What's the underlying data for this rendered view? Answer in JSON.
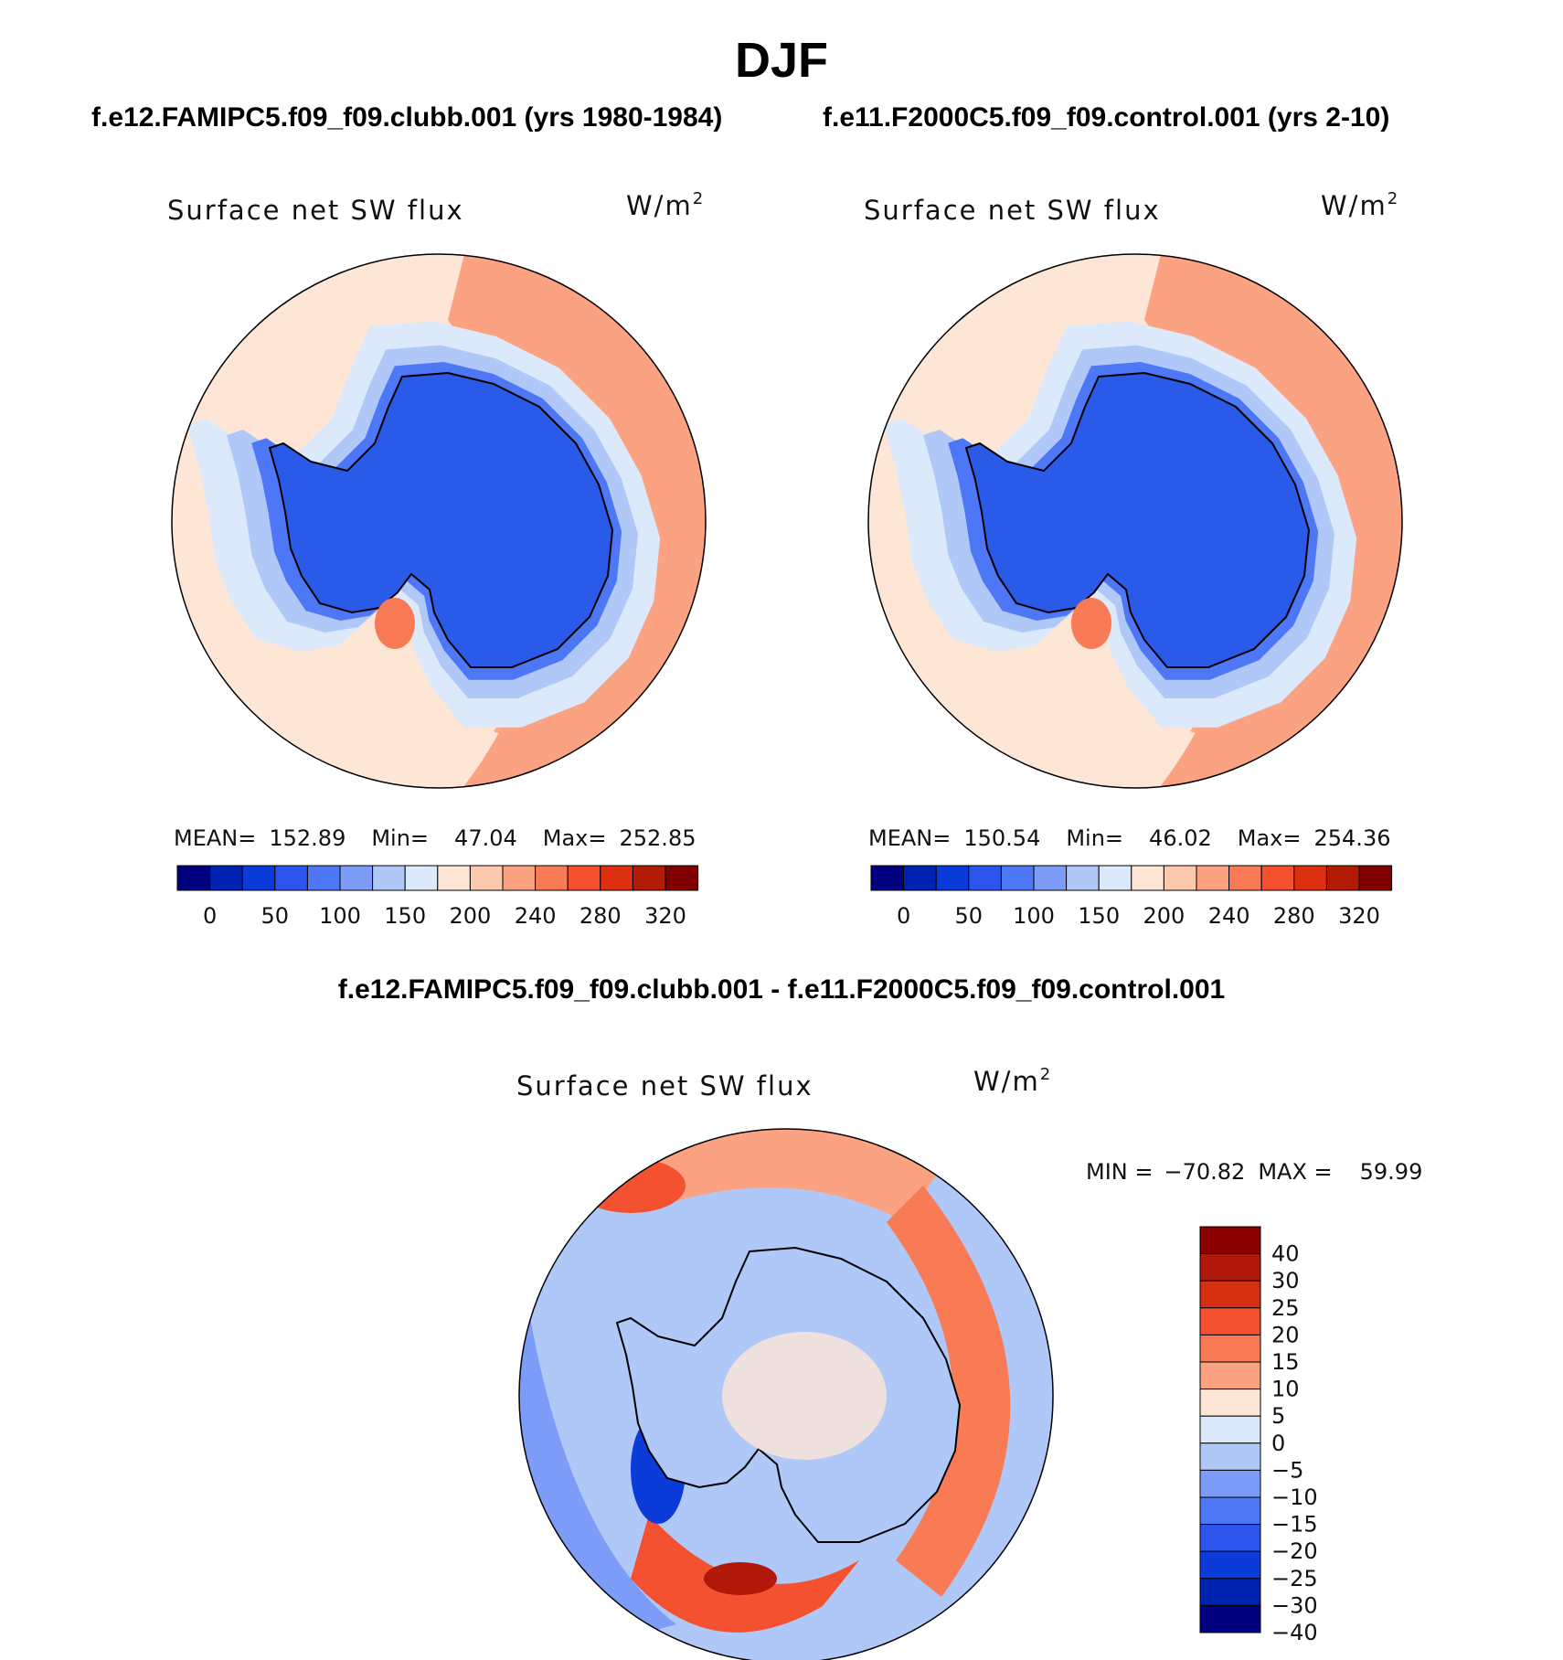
{
  "figure": {
    "title": "DJF",
    "subtitle_left": "f.e12.FAMIPC5.f09_f09.clubb.001 (yrs 1980-1984)",
    "subtitle_right": "f.e11.F2000C5.f09_f09.control.001 (yrs 2-10)",
    "diff_title": "f.e12.FAMIPC5.f09_f09.clubb.001 - f.e11.F2000C5.f09_f09.control.001"
  },
  "chart_data": [
    {
      "type": "heatmap",
      "projection": "south-polar-stereographic",
      "title": "Surface net SW flux",
      "units": "W/m",
      "units_sup": "2",
      "stats": {
        "mean_label": "MEAN=",
        "mean": "152.89",
        "min_label": "Min=",
        "min": "47.04",
        "max_label": "Max=",
        "max": "252.85"
      },
      "colorbar": {
        "orientation": "horizontal",
        "tick_labels": [
          "0",
          "50",
          "100",
          "150",
          "200",
          "240",
          "280",
          "320"
        ],
        "colors": [
          "#00007f",
          "#0022b0",
          "#0b3bd9",
          "#2c55ee",
          "#4e77f5",
          "#7d9cf8",
          "#b0c8f8",
          "#dce9fb",
          "#fde6d6",
          "#fcc8ae",
          "#faa281",
          "#f97b55",
          "#f45130",
          "#dc3010",
          "#b21c06",
          "#800000"
        ]
      }
    },
    {
      "type": "heatmap",
      "projection": "south-polar-stereographic",
      "title": "Surface net SW flux",
      "units": "W/m",
      "units_sup": "2",
      "stats": {
        "mean_label": "MEAN=",
        "mean": "150.54",
        "min_label": "Min=",
        "min": "46.02",
        "max_label": "Max=",
        "max": "254.36"
      },
      "colorbar": {
        "orientation": "horizontal",
        "tick_labels": [
          "0",
          "50",
          "100",
          "150",
          "200",
          "240",
          "280",
          "320"
        ],
        "colors": [
          "#00007f",
          "#0022b0",
          "#0b3bd9",
          "#2c55ee",
          "#4e77f5",
          "#7d9cf8",
          "#b0c8f8",
          "#dce9fb",
          "#fde6d6",
          "#fcc8ae",
          "#faa281",
          "#f97b55",
          "#f45130",
          "#dc3010",
          "#b21c06",
          "#800000"
        ]
      }
    },
    {
      "type": "heatmap",
      "projection": "south-polar-stereographic",
      "title": "Surface net SW flux",
      "units": "W/m",
      "units_sup": "2",
      "stats": {
        "min_label": "MIN =",
        "min": "−70.82",
        "max_label": "MAX =",
        "max": "59.99"
      },
      "colorbar": {
        "orientation": "vertical",
        "tick_labels": [
          "40",
          "30",
          "25",
          "20",
          "15",
          "10",
          "5",
          "0",
          "−5",
          "−10",
          "−15",
          "−20",
          "−25",
          "−30",
          "−40"
        ],
        "colors": [
          "#8b0000",
          "#b0180a",
          "#d63010",
          "#f45130",
          "#f97b55",
          "#faa281",
          "#fde6d6",
          "#dce9fb",
          "#b0c8f8",
          "#7d9cf8",
          "#4e77f5",
          "#2c55ee",
          "#0b3bd9",
          "#0022b0",
          "#00007f"
        ]
      }
    }
  ]
}
